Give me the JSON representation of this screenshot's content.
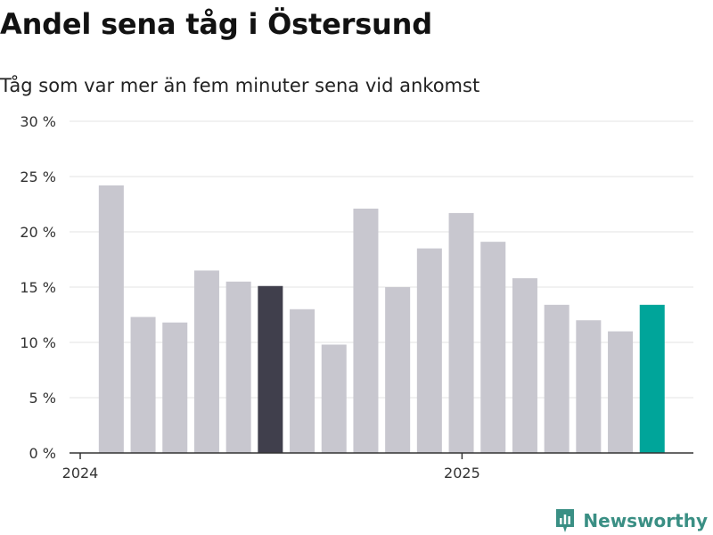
{
  "title": "Andel sena tåg i Östersund",
  "subtitle": "Tåg som var mer än fem minuter sena vid ankomst",
  "brand": {
    "name": "Newsworthy",
    "icon": "newsworthy-logo-icon",
    "color": "#3a8f84"
  },
  "colors": {
    "default": "#c8c7cf",
    "highlight_dark": "#403f4c",
    "highlight_current": "#00a59a",
    "grid": "#e3e3e3",
    "axis": "#333333"
  },
  "chart_data": {
    "type": "bar",
    "title": "Andel sena tåg i Östersund",
    "subtitle": "Tåg som var mer än fem minuter sena vid ankomst",
    "xlabel": "",
    "ylabel": "",
    "ylim": [
      0,
      30
    ],
    "y_ticks": [
      "0 %",
      "5 %",
      "10 %",
      "15 %",
      "20 %",
      "25 %",
      "30 %"
    ],
    "x_tick_labels": [
      "2024",
      "2025"
    ],
    "categories": [
      "2024-01",
      "2024-02",
      "2024-03",
      "2024-04",
      "2024-05",
      "2024-06",
      "2024-07",
      "2024-08",
      "2024-09",
      "2024-10",
      "2024-11",
      "2024-12",
      "2025-01",
      "2025-02",
      "2025-03",
      "2025-04",
      "2025-05",
      "2025-06"
    ],
    "values": [
      24.2,
      12.3,
      11.8,
      16.5,
      15.5,
      15.1,
      13.0,
      9.8,
      22.1,
      15.0,
      18.5,
      21.7,
      19.1,
      15.8,
      13.4,
      12.0,
      11.0,
      13.4
    ],
    "highlight": {
      "2024-06": "highlight_dark",
      "2025-06": "highlight_current"
    },
    "grid": true,
    "legend": "none"
  }
}
